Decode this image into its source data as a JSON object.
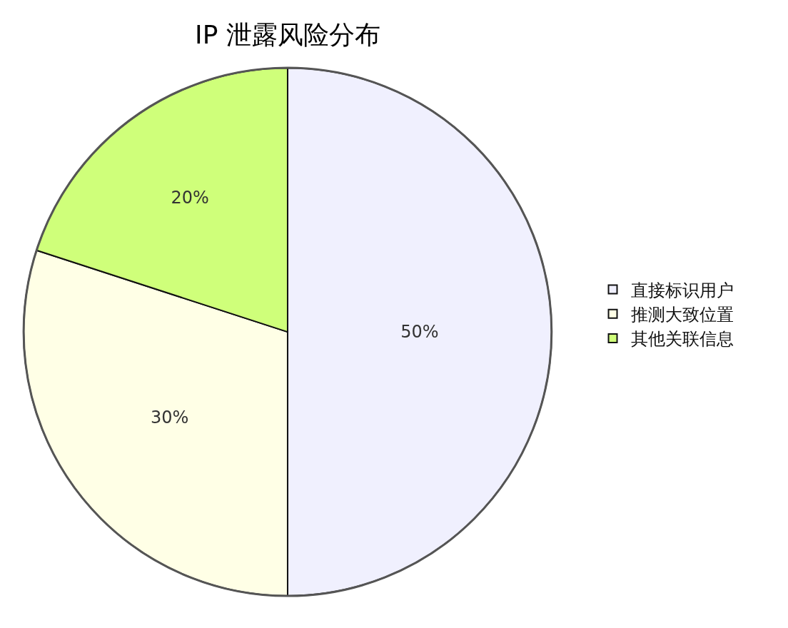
{
  "chart_data": {
    "type": "pie",
    "title": "IP 泄露风险分布",
    "categories": [
      "直接标识用户",
      "推测大致位置",
      "其他关联信息"
    ],
    "values": [
      50,
      30,
      20
    ],
    "value_labels": [
      "50%",
      "30%",
      "20%"
    ],
    "colors": [
      "#f0f0fe",
      "#ffffe6",
      "#cfff7a"
    ],
    "legend": "right"
  }
}
